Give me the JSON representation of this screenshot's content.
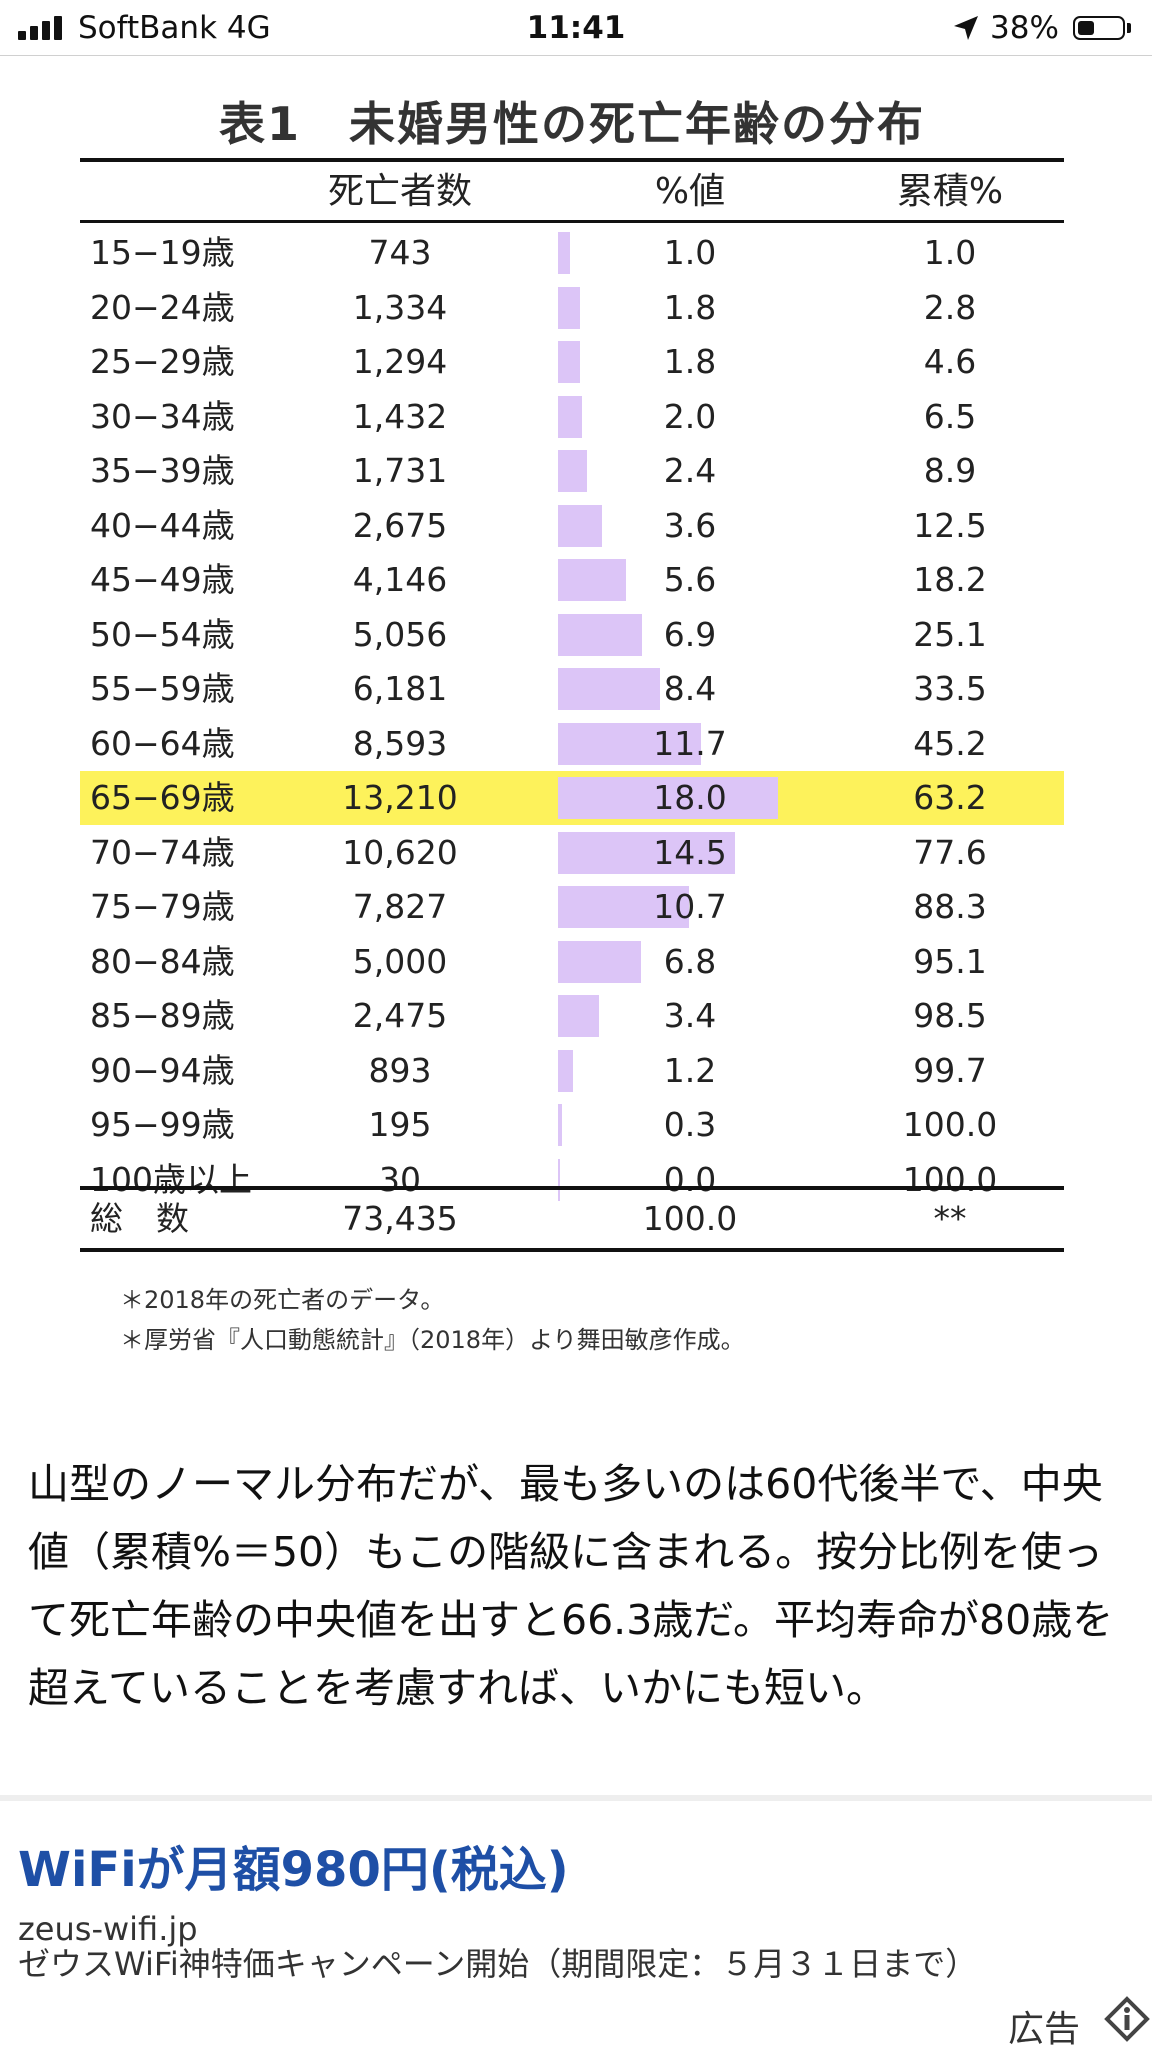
{
  "status_bar": {
    "carrier": "SoftBank   4G",
    "time": "11:41",
    "battery": "38%",
    "icons": [
      "signal-icon",
      "location-icon",
      "battery-icon"
    ]
  },
  "table": {
    "title": "表1　未婚男性の死亡年齢の分布",
    "headers": {
      "count": "死亡者数",
      "pct": "%値",
      "cum": "累積%"
    },
    "rows": [
      {
        "age": "15−19歳",
        "count": "743",
        "pct": "1.0",
        "cum": "1.0"
      },
      {
        "age": "20−24歳",
        "count": "1,334",
        "pct": "1.8",
        "cum": "2.8"
      },
      {
        "age": "25−29歳",
        "count": "1,294",
        "pct": "1.8",
        "cum": "4.6"
      },
      {
        "age": "30−34歳",
        "count": "1,432",
        "pct": "2.0",
        "cum": "6.5"
      },
      {
        "age": "35−39歳",
        "count": "1,731",
        "pct": "2.4",
        "cum": "8.9"
      },
      {
        "age": "40−44歳",
        "count": "2,675",
        "pct": "3.6",
        "cum": "12.5"
      },
      {
        "age": "45−49歳",
        "count": "4,146",
        "pct": "5.6",
        "cum": "18.2"
      },
      {
        "age": "50−54歳",
        "count": "5,056",
        "pct": "6.9",
        "cum": "25.1"
      },
      {
        "age": "55−59歳",
        "count": "6,181",
        "pct": "8.4",
        "cum": "33.5"
      },
      {
        "age": "60−64歳",
        "count": "8,593",
        "pct": "11.7",
        "cum": "45.2"
      },
      {
        "age": "65−69歳",
        "count": "13,210",
        "pct": "18.0",
        "cum": "63.2",
        "highlight": true
      },
      {
        "age": "70−74歳",
        "count": "10,620",
        "pct": "14.5",
        "cum": "77.6"
      },
      {
        "age": "75−79歳",
        "count": "7,827",
        "pct": "10.7",
        "cum": "88.3"
      },
      {
        "age": "80−84歳",
        "count": "5,000",
        "pct": "6.8",
        "cum": "95.1"
      },
      {
        "age": "85−89歳",
        "count": "2,475",
        "pct": "3.4",
        "cum": "98.5"
      },
      {
        "age": "90−94歳",
        "count": "893",
        "pct": "1.2",
        "cum": "99.7"
      },
      {
        "age": "95−99歳",
        "count": "195",
        "pct": "0.3",
        "cum": "100.0"
      },
      {
        "age": "100歳以上",
        "count": "30",
        "pct": "0.0",
        "cum": "100.0"
      }
    ],
    "total": {
      "label": "総　数",
      "count": "73,435",
      "pct": "100.0",
      "cum": "**"
    },
    "notes": [
      "＊2018年の死亡者のデータ。",
      "＊厚労省『人口動態統計』（2018年）より舞田敏彦作成。"
    ],
    "colors": {
      "bar": "#dcc5f7",
      "highlight": "#fdf25b"
    }
  },
  "article": {
    "paragraph": "山型のノーマル分布だが、最も多いのは60代後半で、中央値（累積%＝50）もこの階級に含まれる。按分比例を使って死亡年齢の中央値を出すと66.3歳だ。平均寿命が80歳を超えていることを考慮すれば、いかにも短い。"
  },
  "ad": {
    "title": "WiFiが月額980円(税込)",
    "domain": "zeus-wifi.jp",
    "description": "ゼウスWiFi神特価キャンペーン開始（期間限定：５月３１日まで）",
    "label": "広告",
    "icon": "ad-info-icon",
    "title_color": "#1e4fa6"
  }
}
